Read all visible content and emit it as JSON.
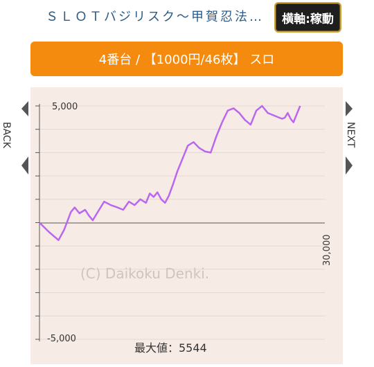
{
  "header": {
    "title": "ＳＬＯＴバジリスク～甲賀忍法…",
    "axis_button": "横軸:稼動"
  },
  "banner": {
    "text": "4番台 / 【1000円/46枚】 スロ"
  },
  "nav": {
    "back": "BACK",
    "next": "NEXT"
  },
  "chart_data": {
    "type": "line",
    "ylim": [
      -5000,
      5000
    ],
    "xlim": [
      0,
      30000
    ],
    "y_tick_labels": [
      "5,000",
      "-5,000"
    ],
    "x_tick_label": "30,000",
    "watermark": "(C) Daikoku Denki.",
    "max_label": "最大値：5544",
    "line_color": "#bb66ee",
    "series": [
      {
        "x": [
          0,
          1000,
          2000,
          2600,
          3300,
          3700,
          4200,
          4800,
          5200,
          5600,
          6200,
          6800,
          7500,
          8200,
          8800,
          9400,
          10000,
          10600,
          11200,
          11600,
          12000,
          12400,
          12800,
          13200,
          13600,
          14000,
          14500,
          15000,
          15600,
          16200,
          16800,
          17400,
          18000,
          18600,
          19200,
          19800,
          20400,
          21000,
          21600,
          22200,
          22800,
          23400,
          24000,
          24600,
          25200,
          25500,
          25800,
          26100,
          26400,
          26700,
          27000,
          27400
        ],
        "y": [
          0,
          -400,
          -750,
          -300,
          450,
          650,
          400,
          550,
          300,
          100,
          500,
          900,
          750,
          650,
          550,
          900,
          750,
          1000,
          850,
          1250,
          1100,
          1300,
          1000,
          850,
          1150,
          1600,
          2200,
          2700,
          3300,
          3450,
          3200,
          3050,
          3000,
          3700,
          4300,
          4800,
          4900,
          4700,
          4400,
          4200,
          4800,
          5000,
          4700,
          4600,
          4500,
          4450,
          4500,
          4700,
          4450,
          4300,
          4600,
          5000
        ]
      }
    ]
  }
}
